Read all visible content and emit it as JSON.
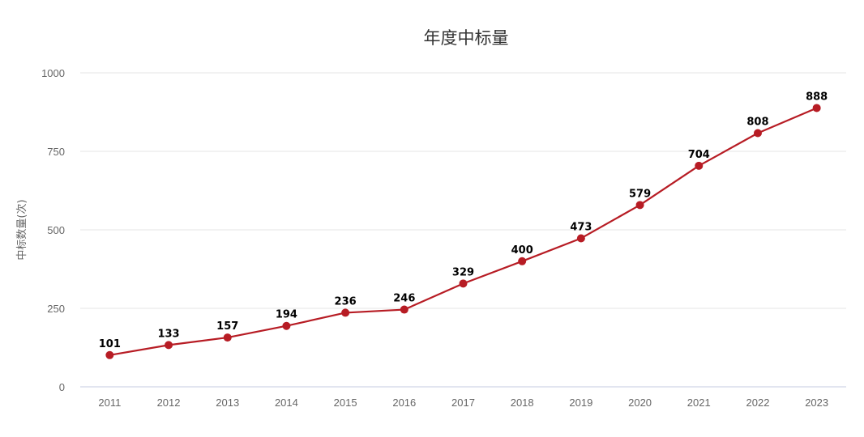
{
  "chart_data": {
    "type": "line",
    "title": "年度中标量",
    "xlabel": "",
    "ylabel": "中标数量(次)",
    "categories": [
      "2011",
      "2012",
      "2013",
      "2014",
      "2015",
      "2016",
      "2017",
      "2018",
      "2019",
      "2020",
      "2021",
      "2022",
      "2023"
    ],
    "series": [
      {
        "values": [
          101,
          133,
          157,
          194,
          236,
          246,
          329,
          400,
          473,
          579,
          704,
          808,
          888
        ],
        "color": "#b71c24"
      }
    ],
    "ylim": [
      0,
      1000
    ],
    "yticks": [
      0,
      250,
      500,
      750,
      1000
    ],
    "grid": true,
    "legend": "none",
    "data_labels": true
  }
}
